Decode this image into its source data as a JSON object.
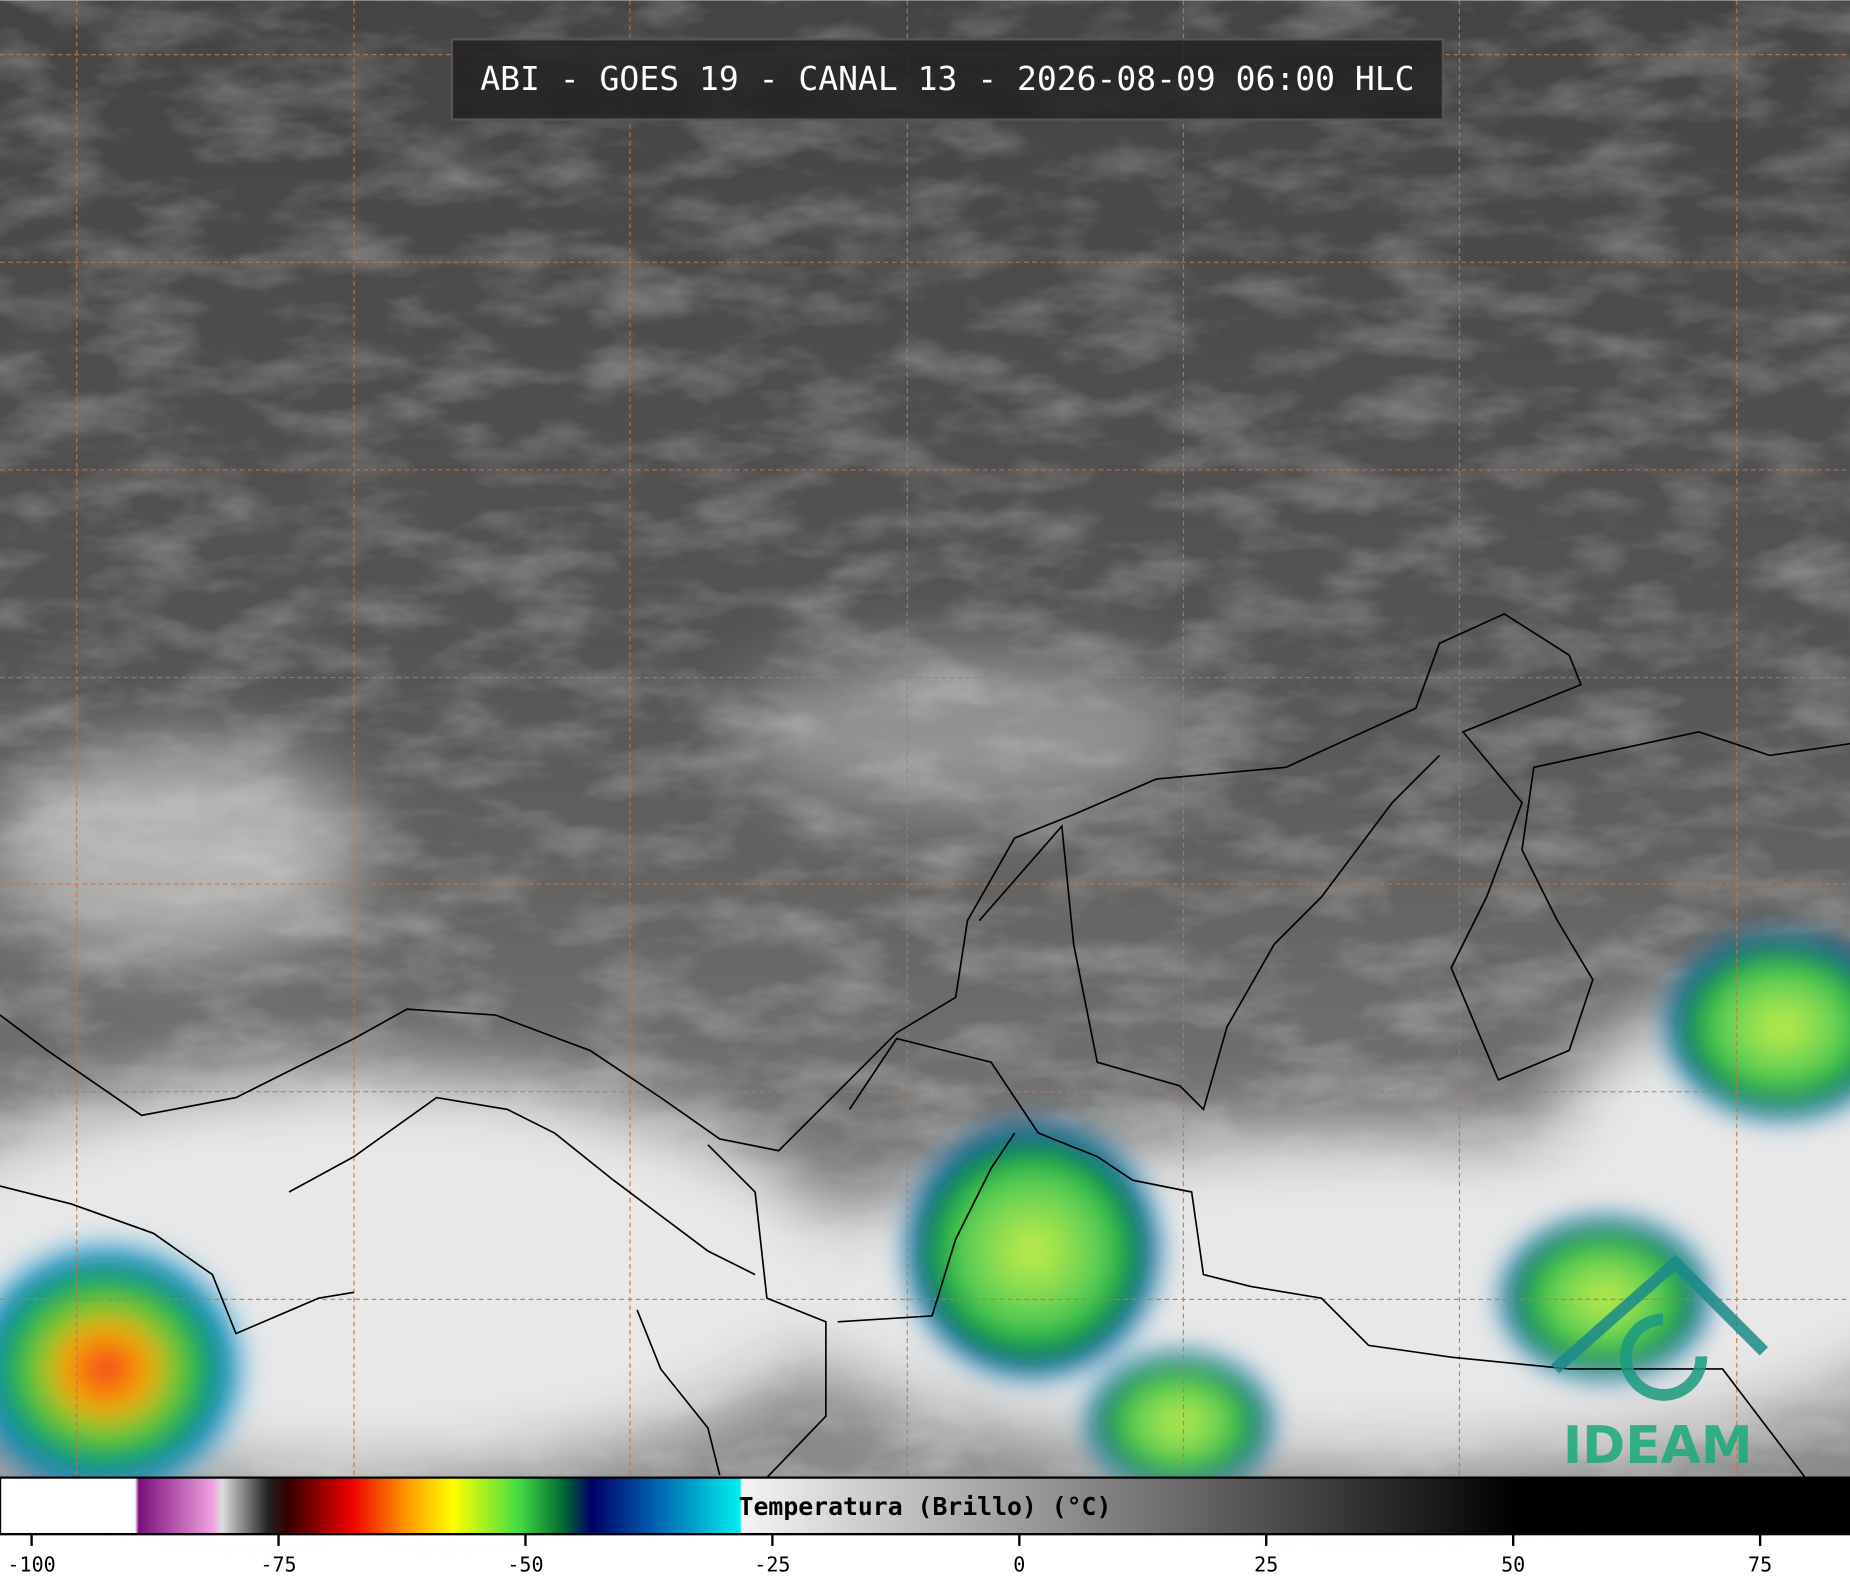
{
  "title": "ABI - GOES 19 - CANAL 13 - 2026-08-09 06:00 HLC",
  "colorbar": {
    "label": "Temperatura (Brillo) (°C)",
    "range": [
      -103.2,
      84.1
    ],
    "ticks": [
      -100,
      -75,
      -50,
      -25,
      0,
      25,
      50,
      75
    ]
  },
  "logo": "IDEAM"
}
